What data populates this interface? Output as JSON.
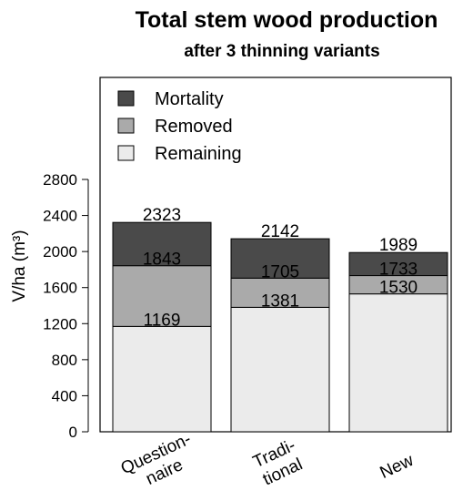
{
  "chart_data": {
    "type": "bar",
    "stacked": true,
    "title": "Total stem wood production",
    "subtitle": "after 3 thinning variants",
    "ylabel": "V/ha (m³)",
    "ylim": [
      0,
      2800
    ],
    "yticks": [
      0,
      400,
      800,
      1200,
      1600,
      2000,
      2400,
      2800
    ],
    "categories": [
      [
        "Question-",
        "naire"
      ],
      [
        "Tradi-",
        "tional"
      ],
      [
        "New"
      ]
    ],
    "series": [
      {
        "name": "Remaining",
        "color": "#ebebeb",
        "values": [
          1169,
          1381,
          1530
        ]
      },
      {
        "name": "Removed",
        "color": "#aaaaaa",
        "values": [
          674,
          324,
          203
        ]
      },
      {
        "name": "Mortality",
        "color": "#4a4a4a",
        "values": [
          480,
          437,
          256
        ]
      }
    ],
    "cumulative_labels": [
      [
        "1169",
        "1843",
        "2323"
      ],
      [
        "1381",
        "1705",
        "2142"
      ],
      [
        "1530",
        "1733",
        "1989"
      ]
    ],
    "legend": {
      "order": [
        "Mortality",
        "Removed",
        "Remaining"
      ],
      "placement": "top-left"
    },
    "grid": false
  }
}
